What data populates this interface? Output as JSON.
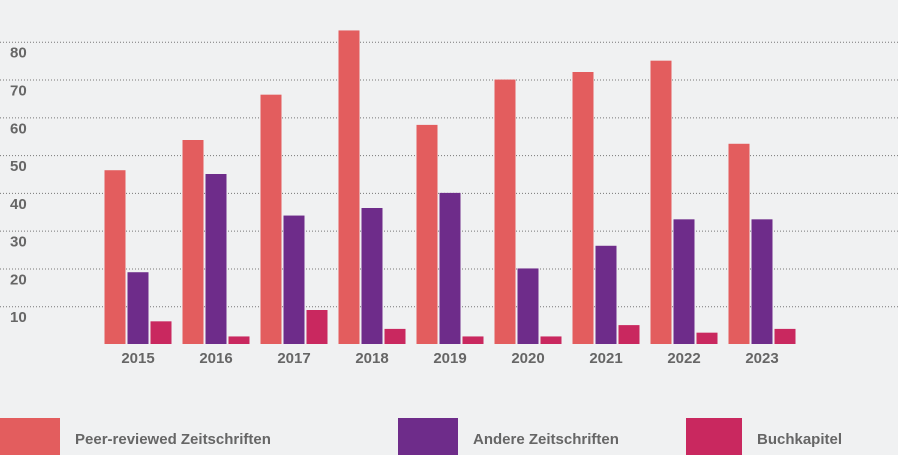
{
  "chart_data": {
    "type": "bar",
    "categories": [
      "2015",
      "2016",
      "2017",
      "2018",
      "2019",
      "2020",
      "2021",
      "2022",
      "2023"
    ],
    "series": [
      {
        "name": "Peer-reviewed Zeitschriften",
        "color": "#e35d5e",
        "values": [
          46,
          54,
          66,
          83,
          58,
          70,
          72,
          75,
          53
        ]
      },
      {
        "name": "Andere Zeitschriften",
        "color": "#6e2c8a",
        "values": [
          19,
          45,
          34,
          36,
          40,
          20,
          26,
          33,
          33
        ]
      },
      {
        "name": "Buchkapitel",
        "color": "#c9285f",
        "values": [
          6,
          2,
          9,
          4,
          2,
          2,
          5,
          3,
          4
        ]
      }
    ],
    "ylim": [
      0,
      90
    ],
    "yticks": [
      10,
      20,
      30,
      40,
      50,
      60,
      70,
      80
    ],
    "grid": true,
    "legend": "bottom"
  }
}
